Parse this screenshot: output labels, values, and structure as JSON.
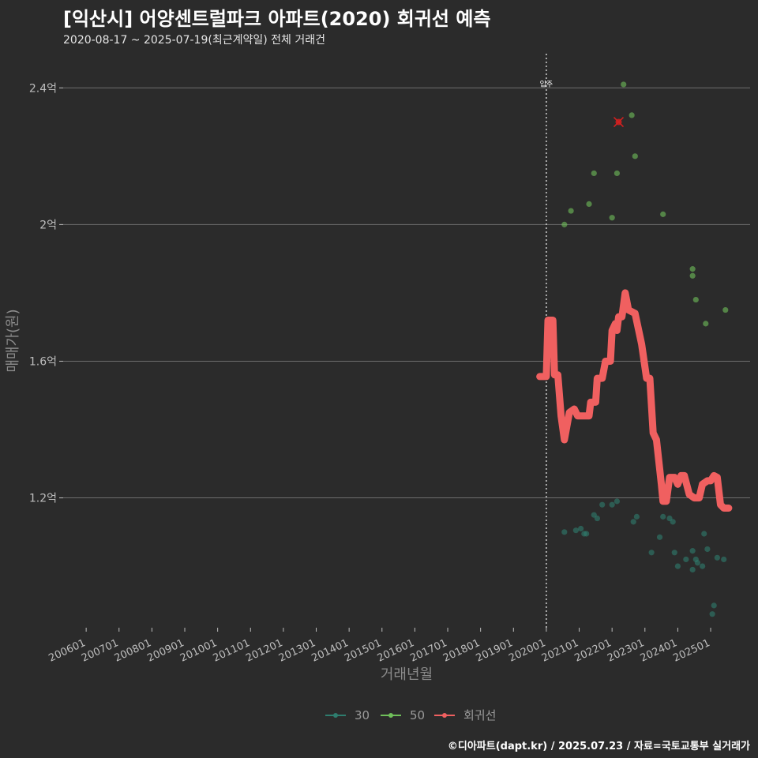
{
  "header": {
    "title": "[익산시] 어양센트럴파크 아파트(2020) 회귀선 예측",
    "subtitle": "2020-08-17 ~ 2025-07-19(최근계약일) 전체 거래건"
  },
  "caption": "©디아파트(dapt.kr) / 2025.07.23 / 자료=국토교통부 실거래가",
  "colors": {
    "background": "#2b2b2b",
    "gridline": "#6e6e6e",
    "series_30": "#2e7d6e",
    "series_50": "#6fbf5a",
    "regression": "#f06060",
    "highlight": "#d32020"
  },
  "chart_data": {
    "type": "scatter",
    "title": "[익산시] 어양센트럴파크 아파트(2020) 회귀선 예측",
    "xlabel": "거래년월",
    "ylabel": "매매가(원)",
    "x_ticks": [
      "200601",
      "200701",
      "200801",
      "200901",
      "201001",
      "201101",
      "201201",
      "201301",
      "201401",
      "201501",
      "201601",
      "201701",
      "201801",
      "201901",
      "202001",
      "202101",
      "202201",
      "202301",
      "202401",
      "202501"
    ],
    "xlim": [
      2005.3,
      2026.2
    ],
    "y_ticks": [
      {
        "value": 1.2,
        "label": "1.2억"
      },
      {
        "value": 1.6,
        "label": "1.6억"
      },
      {
        "value": 2.0,
        "label": "2억"
      },
      {
        "value": 2.4,
        "label": "2.4억"
      }
    ],
    "ylim": [
      0.82,
      2.5
    ],
    "vline": {
      "x": 2020.0,
      "label": "입주"
    },
    "legend": [
      "30",
      "50",
      "회귀선"
    ],
    "series": [
      {
        "name": "30",
        "points": [
          [
            2020.55,
            1.1
          ],
          [
            2020.9,
            1.105
          ],
          [
            2021.05,
            1.11
          ],
          [
            2021.15,
            1.095
          ],
          [
            2021.22,
            1.095
          ],
          [
            2021.45,
            1.15
          ],
          [
            2021.55,
            1.14
          ],
          [
            2021.7,
            1.18
          ],
          [
            2022.0,
            1.18
          ],
          [
            2022.15,
            1.19
          ],
          [
            2022.65,
            1.13
          ],
          [
            2022.75,
            1.145
          ],
          [
            2023.2,
            1.04
          ],
          [
            2023.45,
            1.085
          ],
          [
            2023.55,
            1.145
          ],
          [
            2023.75,
            1.14
          ],
          [
            2023.85,
            1.13
          ],
          [
            2023.9,
            1.04
          ],
          [
            2024.0,
            1.0
          ],
          [
            2024.25,
            1.02
          ],
          [
            2024.45,
            1.045
          ],
          [
            2024.45,
            0.99
          ],
          [
            2024.55,
            1.02
          ],
          [
            2024.6,
            1.01
          ],
          [
            2024.75,
            1.0
          ],
          [
            2024.8,
            1.095
          ],
          [
            2024.9,
            1.05
          ],
          [
            2025.05,
            0.86
          ],
          [
            2025.1,
            0.885
          ],
          [
            2025.2,
            1.025
          ],
          [
            2025.4,
            1.02
          ]
        ]
      },
      {
        "name": "50",
        "points": [
          [
            2020.55,
            2.0
          ],
          [
            2020.75,
            2.04
          ],
          [
            2021.3,
            2.06
          ],
          [
            2021.45,
            2.15
          ],
          [
            2022.0,
            2.02
          ],
          [
            2022.15,
            2.15
          ],
          [
            2022.35,
            2.41
          ],
          [
            2022.6,
            2.32
          ],
          [
            2022.7,
            2.2
          ],
          [
            2023.55,
            2.03
          ],
          [
            2024.45,
            1.87
          ],
          [
            2024.45,
            1.85
          ],
          [
            2024.55,
            1.78
          ],
          [
            2024.85,
            1.71
          ],
          [
            2025.45,
            1.75
          ]
        ]
      },
      {
        "name": "회귀선",
        "points": [
          [
            2019.8,
            1.555
          ],
          [
            2020.0,
            1.555
          ],
          [
            2020.05,
            1.72
          ],
          [
            2020.2,
            1.72
          ],
          [
            2020.25,
            1.56
          ],
          [
            2020.35,
            1.56
          ],
          [
            2020.45,
            1.44
          ],
          [
            2020.55,
            1.37
          ],
          [
            2020.7,
            1.45
          ],
          [
            2020.85,
            1.46
          ],
          [
            2020.95,
            1.44
          ],
          [
            2021.2,
            1.44
          ],
          [
            2021.3,
            1.44
          ],
          [
            2021.35,
            1.48
          ],
          [
            2021.5,
            1.48
          ],
          [
            2021.55,
            1.55
          ],
          [
            2021.7,
            1.55
          ],
          [
            2021.8,
            1.6
          ],
          [
            2021.95,
            1.6
          ],
          [
            2022.0,
            1.69
          ],
          [
            2022.1,
            1.71
          ],
          [
            2022.15,
            1.69
          ],
          [
            2022.2,
            1.73
          ],
          [
            2022.3,
            1.73
          ],
          [
            2022.4,
            1.8
          ],
          [
            2022.5,
            1.75
          ],
          [
            2022.7,
            1.74
          ],
          [
            2022.9,
            1.65
          ],
          [
            2023.05,
            1.55
          ],
          [
            2023.15,
            1.55
          ],
          [
            2023.25,
            1.39
          ],
          [
            2023.35,
            1.37
          ],
          [
            2023.5,
            1.24
          ],
          [
            2023.55,
            1.19
          ],
          [
            2023.65,
            1.19
          ],
          [
            2023.75,
            1.26
          ],
          [
            2023.9,
            1.26
          ],
          [
            2024.0,
            1.24
          ],
          [
            2024.1,
            1.265
          ],
          [
            2024.2,
            1.265
          ],
          [
            2024.35,
            1.21
          ],
          [
            2024.5,
            1.2
          ],
          [
            2024.65,
            1.2
          ],
          [
            2024.75,
            1.24
          ],
          [
            2024.9,
            1.25
          ],
          [
            2025.0,
            1.25
          ],
          [
            2025.1,
            1.265
          ],
          [
            2025.2,
            1.26
          ],
          [
            2025.3,
            1.18
          ],
          [
            2025.4,
            1.17
          ],
          [
            2025.55,
            1.17
          ]
        ]
      }
    ],
    "highlight_point": [
      2022.2,
      2.3
    ]
  }
}
